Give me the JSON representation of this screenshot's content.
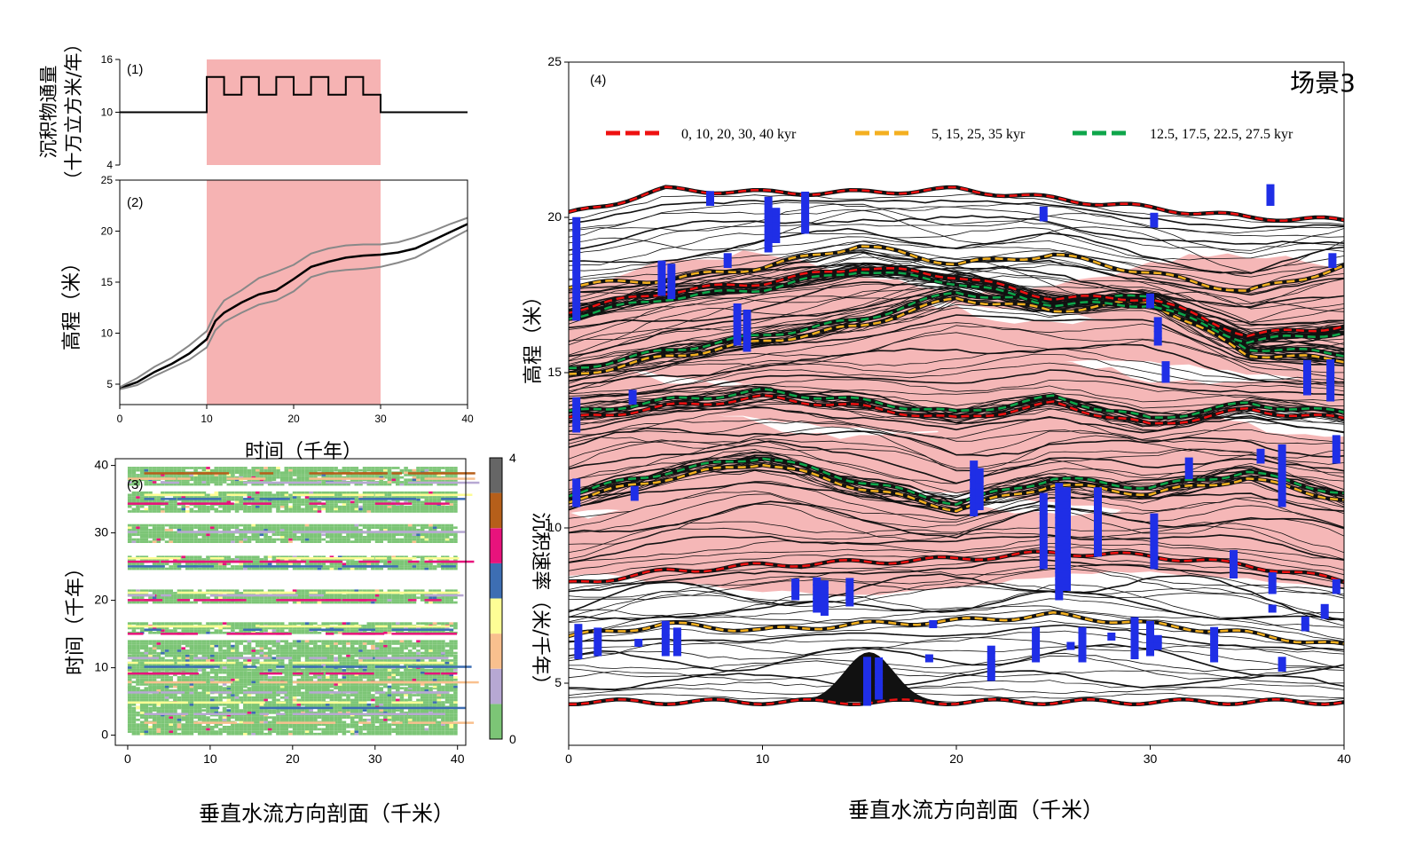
{
  "chart_data": [
    {
      "id": "panel1",
      "type": "line",
      "label": "(1)",
      "ylabel_lines": [
        "沉积物通量",
        "（十万立方米/年）"
      ],
      "xlim": [
        0,
        40
      ],
      "ylim": [
        4,
        16
      ],
      "yticks": [
        4,
        10,
        16
      ],
      "shade": {
        "x": [
          10,
          30
        ],
        "color": "#f6b3b3"
      },
      "series": [
        {
          "x": [
            0,
            10,
            10,
            12,
            12,
            14,
            14,
            16,
            16,
            18,
            18,
            20,
            20,
            22,
            22,
            24,
            24,
            26,
            26,
            28,
            28,
            30,
            30,
            40
          ],
          "y": [
            10,
            10,
            14,
            14,
            12,
            12,
            14,
            14,
            12,
            12,
            14,
            14,
            12,
            12,
            14,
            14,
            12,
            12,
            14,
            14,
            12,
            12,
            10,
            10
          ],
          "color": "#000000"
        }
      ]
    },
    {
      "id": "panel2",
      "type": "line",
      "label": "(2)",
      "xlabel": "时间（千年）",
      "ylabel": "高程（米）",
      "xlim": [
        0,
        40
      ],
      "ylim": [
        3,
        25
      ],
      "xticks": [
        0,
        10,
        20,
        30,
        40
      ],
      "yticks": [
        5,
        10,
        15,
        20,
        25
      ],
      "shade": {
        "x": [
          10,
          30
        ],
        "color": "#f6b3b3"
      },
      "series": [
        {
          "role": "mean",
          "color": "#000000",
          "x": [
            0,
            2,
            4,
            6,
            8,
            10,
            11,
            12,
            14,
            16,
            18,
            20,
            22,
            24,
            26,
            28,
            30,
            32,
            34,
            36,
            38,
            40
          ],
          "y": [
            4.6,
            5.2,
            6.2,
            7.0,
            8.0,
            9.4,
            11.2,
            12.0,
            13.0,
            13.8,
            14.2,
            15.3,
            16.5,
            17.0,
            17.4,
            17.6,
            17.7,
            17.9,
            18.3,
            19.1,
            19.9,
            20.7
          ]
        },
        {
          "role": "upper",
          "color": "#888888",
          "x": [
            0,
            2,
            4,
            6,
            8,
            10,
            11,
            12,
            14,
            16,
            18,
            20,
            22,
            24,
            26,
            28,
            30,
            32,
            34,
            36,
            38,
            40
          ],
          "y": [
            4.7,
            5.6,
            6.7,
            7.6,
            8.8,
            10.2,
            12.0,
            13.2,
            14.2,
            15.4,
            16.0,
            16.7,
            17.8,
            18.3,
            18.6,
            18.7,
            18.7,
            18.9,
            19.4,
            20.0,
            20.7,
            21.3
          ]
        },
        {
          "role": "lower",
          "color": "#888888",
          "x": [
            0,
            2,
            4,
            6,
            8,
            10,
            11,
            12,
            14,
            16,
            18,
            20,
            22,
            24,
            26,
            28,
            30,
            32,
            34,
            36,
            38,
            40
          ],
          "y": [
            4.5,
            4.9,
            5.8,
            6.6,
            7.4,
            8.6,
            10.3,
            11.1,
            12.0,
            12.8,
            13.2,
            14.1,
            15.5,
            16.0,
            16.2,
            16.3,
            16.5,
            16.9,
            17.4,
            18.3,
            19.2,
            20.1
          ]
        }
      ]
    },
    {
      "id": "panel3",
      "type": "heatmap",
      "label": "(3)",
      "xlabel": "垂直水流方向剖面（千米）",
      "ylabel": "时间（千年）",
      "xlim": [
        -1.5,
        41
      ],
      "ylim": [
        -1.5,
        41
      ],
      "xticks": [
        0,
        10,
        20,
        30,
        40
      ],
      "yticks": [
        0,
        10,
        20,
        30,
        40
      ],
      "colorbar": {
        "label": "沉积速率（米/千年）",
        "ticks": [
          0,
          4
        ],
        "colors": [
          "#7cc576",
          "#b7a8d3",
          "#f9c08e",
          "#fdfd95",
          "#3d6eb3",
          "#e8137c",
          "#b65f1a",
          "#666666"
        ]
      },
      "bands": [
        {
          "t": [
            0,
            4
          ],
          "c": 0
        },
        {
          "t": [
            4,
            7
          ],
          "c": 0
        },
        {
          "t": [
            7,
            9.5
          ],
          "c": 0
        },
        {
          "t": [
            9.5,
            12
          ],
          "c": 0
        },
        {
          "t": [
            12,
            14
          ],
          "c": 0
        },
        {
          "t": [
            15,
            16.5
          ],
          "c": 0
        },
        {
          "t": [
            19.5,
            21.5
          ],
          "c": 0
        },
        {
          "t": [
            24.5,
            26.5
          ],
          "c": 0
        },
        {
          "t": [
            28.5,
            31
          ],
          "c": 0
        },
        {
          "t": [
            33,
            36
          ],
          "c": 0
        },
        {
          "t": [
            37,
            39.5
          ],
          "c": 0
        }
      ],
      "accent_lines": [
        {
          "t": 2.0,
          "c": 2
        },
        {
          "t": 3.3,
          "c": 1
        },
        {
          "t": 4.2,
          "c": 4
        },
        {
          "t": 5.0,
          "c": 3
        },
        {
          "t": 6.5,
          "c": 1
        },
        {
          "t": 8.0,
          "c": 2
        },
        {
          "t": 9.3,
          "c": 5
        },
        {
          "t": 10.3,
          "c": 4
        },
        {
          "t": 10.9,
          "c": 3
        },
        {
          "t": 11.6,
          "c": 1
        },
        {
          "t": 15.2,
          "c": 5
        },
        {
          "t": 15.8,
          "c": 4
        },
        {
          "t": 16.3,
          "c": 3
        },
        {
          "t": 20.2,
          "c": 5
        },
        {
          "t": 20.9,
          "c": 1
        },
        {
          "t": 21.3,
          "c": 3
        },
        {
          "t": 25.2,
          "c": 4
        },
        {
          "t": 25.9,
          "c": 5
        },
        {
          "t": 26.4,
          "c": 3
        },
        {
          "t": 30.3,
          "c": 1
        },
        {
          "t": 34.5,
          "c": 5
        },
        {
          "t": 35.2,
          "c": 4
        },
        {
          "t": 35.8,
          "c": 3
        },
        {
          "t": 37.6,
          "c": 1
        },
        {
          "t": 38.2,
          "c": 2
        },
        {
          "t": 39.0,
          "c": 6
        }
      ]
    },
    {
      "id": "panel4",
      "type": "line",
      "label": "(4)",
      "title": "场景3",
      "xlabel": "垂直水流方向剖面（千米）",
      "ylabel": "高程（米）",
      "xlim": [
        0,
        40
      ],
      "ylim": [
        3,
        25
      ],
      "xticks": [
        0,
        10,
        20,
        30,
        40
      ],
      "yticks": [
        5,
        10,
        15,
        20,
        25
      ],
      "legend": [
        {
          "label": "0, 10, 20, 30, 40 kyr",
          "color": "#ee1111"
        },
        {
          "label": "5, 15, 25, 35 kyr",
          "color": "#f4b020"
        },
        {
          "label": "12.5, 17.5, 22.5, 27.5 kyr",
          "color": "#0ea64a"
        }
      ],
      "legend_position": "top",
      "pink_zones": [
        [
          8.2,
          11.0
        ],
        [
          10.9,
          13.5
        ],
        [
          13.4,
          15.2
        ],
        [
          15.0,
          17.2
        ],
        [
          16.9,
          18.2
        ]
      ],
      "surfaces": [
        {
          "color": "#ee1111",
          "x": [
            0,
            5,
            10,
            15,
            20,
            25,
            30,
            35,
            40
          ],
          "y": [
            4.4,
            4.4,
            4.4,
            4.4,
            4.4,
            4.4,
            4.4,
            4.4,
            4.4
          ]
        },
        {
          "color": "#f4b020",
          "x": [
            0,
            5,
            10,
            15,
            20,
            25,
            30,
            35,
            40
          ],
          "y": [
            6.5,
            6.9,
            6.7,
            6.9,
            7.0,
            7.2,
            6.9,
            6.6,
            6.2
          ]
        },
        {
          "color": "#ee1111",
          "x": [
            0,
            5,
            10,
            15,
            20,
            25,
            30,
            35,
            40
          ],
          "y": [
            8.2,
            8.6,
            8.8,
            8.9,
            9.0,
            9.2,
            9.1,
            8.8,
            8.3
          ]
        },
        {
          "color": "#f4b020",
          "x": [
            0,
            5,
            10,
            15,
            20,
            25,
            30,
            35,
            40
          ],
          "y": [
            10.9,
            11.6,
            12.1,
            11.3,
            10.6,
            11.4,
            11.1,
            11.6,
            10.9
          ]
        },
        {
          "color": "#0ea64a",
          "x": [
            0,
            5,
            10,
            15,
            20,
            25,
            30,
            35,
            40
          ],
          "y": [
            11.1,
            11.8,
            12.3,
            11.5,
            10.8,
            11.6,
            11.3,
            11.8,
            11.1
          ]
        },
        {
          "color": "#ee1111",
          "x": [
            0,
            5,
            10,
            15,
            20,
            25,
            30,
            35,
            40
          ],
          "y": [
            13.5,
            13.9,
            14.2,
            13.9,
            13.5,
            14.0,
            13.3,
            13.8,
            13.5
          ]
        },
        {
          "color": "#0ea64a",
          "x": [
            0,
            5,
            10,
            15,
            20,
            25,
            30,
            35,
            40
          ],
          "y": [
            13.7,
            14.1,
            14.4,
            14.1,
            13.7,
            14.2,
            13.5,
            14.0,
            13.7
          ]
        },
        {
          "color": "#f4b020",
          "x": [
            0,
            5,
            10,
            15,
            20,
            25,
            30,
            35,
            40
          ],
          "y": [
            14.9,
            15.5,
            16.0,
            16.5,
            17.4,
            17.0,
            17.3,
            15.6,
            15.4
          ]
        },
        {
          "color": "#0ea64a",
          "x": [
            0,
            5,
            10,
            15,
            20,
            25,
            30,
            35,
            40
          ],
          "y": [
            15.1,
            15.7,
            16.2,
            16.7,
            17.6,
            17.2,
            17.5,
            15.8,
            15.6
          ]
        },
        {
          "color": "#ee1111",
          "x": [
            0,
            5,
            10,
            15,
            20,
            25,
            30,
            35,
            40
          ],
          "y": [
            17.0,
            17.6,
            17.9,
            18.4,
            18.1,
            17.4,
            17.4,
            16.2,
            16.5
          ]
        },
        {
          "color": "#0ea64a",
          "x": [
            0,
            5,
            10,
            15,
            20,
            25,
            30,
            35,
            40
          ],
          "y": [
            16.8,
            17.4,
            17.7,
            18.3,
            17.9,
            17.2,
            17.2,
            16.0,
            16.3
          ]
        },
        {
          "color": "#f4b020",
          "x": [
            0,
            5,
            10,
            15,
            20,
            25,
            30,
            35,
            40
          ],
          "y": [
            17.8,
            18.0,
            18.4,
            19.1,
            18.5,
            18.8,
            18.2,
            17.6,
            18.4
          ]
        },
        {
          "color": "#ee1111",
          "x": [
            0,
            5,
            10,
            15,
            20,
            25,
            30,
            35,
            40
          ],
          "y": [
            20.1,
            20.9,
            20.8,
            20.8,
            20.9,
            20.6,
            20.3,
            20.0,
            19.9
          ]
        }
      ],
      "blue_markers": [
        {
          "x": 0.4,
          "y0": 16.8,
          "y1": 19.9
        },
        {
          "x": 0.4,
          "y0": 13.2,
          "y1": 14.2
        },
        {
          "x": 0.4,
          "y0": 10.8,
          "y1": 11.5
        },
        {
          "x": 0.5,
          "y0": 5.9,
          "y1": 6.9
        },
        {
          "x": 1.5,
          "y0": 6.0,
          "y1": 6.8
        },
        {
          "x": 3.3,
          "y0": 14.1,
          "y1": 14.5
        },
        {
          "x": 3.6,
          "y0": 6.3,
          "y1": 6.5
        },
        {
          "x": 3.4,
          "y0": 11.0,
          "y1": 11.4
        },
        {
          "x": 4.8,
          "y0": 17.6,
          "y1": 18.5
        },
        {
          "x": 5.3,
          "y0": 17.5,
          "y1": 18.4
        },
        {
          "x": 5.0,
          "y0": 6.0,
          "y1": 7.0
        },
        {
          "x": 5.6,
          "y0": 6.0,
          "y1": 6.8
        },
        {
          "x": 7.3,
          "y0": 20.5,
          "y1": 20.8
        },
        {
          "x": 8.2,
          "y0": 18.5,
          "y1": 18.8
        },
        {
          "x": 8.7,
          "y0": 16.0,
          "y1": 17.2
        },
        {
          "x": 9.2,
          "y0": 15.8,
          "y1": 16.9
        },
        {
          "x": 10.3,
          "y0": 19.0,
          "y1": 20.6
        },
        {
          "x": 10.7,
          "y0": 19.3,
          "y1": 20.3
        },
        {
          "x": 12.2,
          "y0": 19.6,
          "y1": 20.9
        },
        {
          "x": 11.7,
          "y0": 7.8,
          "y1": 8.3
        },
        {
          "x": 12.8,
          "y0": 7.4,
          "y1": 8.4
        },
        {
          "x": 13.2,
          "y0": 7.3,
          "y1": 8.3
        },
        {
          "x": 14.5,
          "y0": 7.6,
          "y1": 8.4
        },
        {
          "x": 15.4,
          "y0": 4.4,
          "y1": 5.9
        },
        {
          "x": 16.0,
          "y0": 4.6,
          "y1": 5.8
        },
        {
          "x": 18.8,
          "y0": 6.9,
          "y1": 7.1
        },
        {
          "x": 18.6,
          "y0": 5.8,
          "y1": 6.0
        },
        {
          "x": 20.9,
          "y0": 10.5,
          "y1": 12.2
        },
        {
          "x": 21.2,
          "y0": 10.7,
          "y1": 11.9
        },
        {
          "x": 21.8,
          "y0": 5.2,
          "y1": 6.2
        },
        {
          "x": 24.1,
          "y0": 5.8,
          "y1": 6.8
        },
        {
          "x": 24.5,
          "y0": 8.8,
          "y1": 11.0
        },
        {
          "x": 25.3,
          "y0": 7.8,
          "y1": 11.5
        },
        {
          "x": 25.7,
          "y0": 8.1,
          "y1": 11.3
        },
        {
          "x": 25.9,
          "y0": 6.2,
          "y1": 6.4
        },
        {
          "x": 27.3,
          "y0": 9.2,
          "y1": 11.2
        },
        {
          "x": 26.5,
          "y0": 5.8,
          "y1": 6.8
        },
        {
          "x": 28.0,
          "y0": 6.5,
          "y1": 6.7
        },
        {
          "x": 29.2,
          "y0": 5.9,
          "y1": 7.0
        },
        {
          "x": 30.0,
          "y0": 6.0,
          "y1": 6.9
        },
        {
          "x": 30.4,
          "y0": 6.2,
          "y1": 6.5
        },
        {
          "x": 30.2,
          "y0": 8.8,
          "y1": 10.5
        },
        {
          "x": 30.8,
          "y0": 14.8,
          "y1": 15.4
        },
        {
          "x": 30.4,
          "y0": 16.0,
          "y1": 16.8
        },
        {
          "x": 30.0,
          "y0": 17.2,
          "y1": 17.6
        },
        {
          "x": 32.0,
          "y0": 11.7,
          "y1": 12.2
        },
        {
          "x": 33.3,
          "y0": 5.8,
          "y1": 6.8
        },
        {
          "x": 34.3,
          "y0": 8.5,
          "y1": 9.2
        },
        {
          "x": 35.7,
          "y0": 12.2,
          "y1": 12.5
        },
        {
          "x": 36.3,
          "y0": 8.0,
          "y1": 8.6
        },
        {
          "x": 36.3,
          "y0": 7.4,
          "y1": 7.6
        },
        {
          "x": 36.8,
          "y0": 5.5,
          "y1": 5.8
        },
        {
          "x": 36.8,
          "y0": 10.8,
          "y1": 12.6
        },
        {
          "x": 38.1,
          "y0": 14.4,
          "y1": 15.3
        },
        {
          "x": 38.0,
          "y0": 6.8,
          "y1": 7.2
        },
        {
          "x": 39.0,
          "y0": 7.2,
          "y1": 7.6
        },
        {
          "x": 39.3,
          "y0": 14.2,
          "y1": 15.5
        },
        {
          "x": 39.6,
          "y0": 12.2,
          "y1": 13.0
        },
        {
          "x": 39.6,
          "y0": 8.0,
          "y1": 8.4
        },
        {
          "x": 39.4,
          "y0": 18.5,
          "y1": 18.9
        },
        {
          "x": 36.2,
          "y0": 20.5,
          "y1": 21.0
        },
        {
          "x": 24.5,
          "y0": 20.0,
          "y1": 20.4
        },
        {
          "x": 30.2,
          "y0": 19.8,
          "y1": 20.2
        }
      ]
    }
  ]
}
